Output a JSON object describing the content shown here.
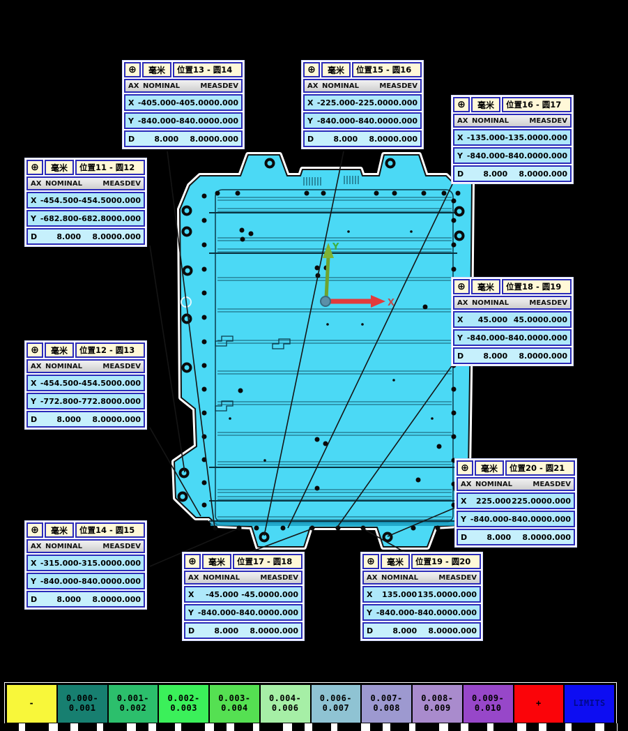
{
  "report": {
    "unit_label": "毫米",
    "feature_symbol": "⊕",
    "column_headers": [
      "AX",
      "NOMINAL",
      "MEAS",
      "DEV"
    ],
    "tables": [
      {
        "id": "pos13-circle14",
        "title": "位置13 - 圆14",
        "rows": [
          {
            "ax": "X",
            "nominal": "-405.000",
            "meas": "-405.000",
            "dev": "0.000"
          },
          {
            "ax": "Y",
            "nominal": "-840.000",
            "meas": "-840.000",
            "dev": "0.000"
          },
          {
            "ax": "D",
            "nominal": "8.000",
            "meas": "8.000",
            "dev": "0.000"
          }
        ]
      },
      {
        "id": "pos15-circle16",
        "title": "位置15 - 圆16",
        "rows": [
          {
            "ax": "X",
            "nominal": "-225.000",
            "meas": "-225.000",
            "dev": "0.000"
          },
          {
            "ax": "Y",
            "nominal": "-840.000",
            "meas": "-840.000",
            "dev": "0.000"
          },
          {
            "ax": "D",
            "nominal": "8.000",
            "meas": "8.000",
            "dev": "0.000"
          }
        ]
      },
      {
        "id": "pos16-circle17",
        "title": "位置16 - 圆17",
        "rows": [
          {
            "ax": "X",
            "nominal": "-135.000",
            "meas": "-135.000",
            "dev": "0.000"
          },
          {
            "ax": "Y",
            "nominal": "-840.000",
            "meas": "-840.000",
            "dev": "0.000"
          },
          {
            "ax": "D",
            "nominal": "8.000",
            "meas": "8.000",
            "dev": "0.000"
          }
        ]
      },
      {
        "id": "pos11-circle12",
        "title": "位置11 - 圆12",
        "rows": [
          {
            "ax": "X",
            "nominal": "-454.500",
            "meas": "-454.500",
            "dev": "0.000"
          },
          {
            "ax": "Y",
            "nominal": "-682.800",
            "meas": "-682.800",
            "dev": "0.000"
          },
          {
            "ax": "D",
            "nominal": "8.000",
            "meas": "8.000",
            "dev": "0.000"
          }
        ]
      },
      {
        "id": "pos18-circle19",
        "title": "位置18 - 圆19",
        "rows": [
          {
            "ax": "X",
            "nominal": "45.000",
            "meas": "45.000",
            "dev": "0.000"
          },
          {
            "ax": "Y",
            "nominal": "-840.000",
            "meas": "-840.000",
            "dev": "0.000"
          },
          {
            "ax": "D",
            "nominal": "8.000",
            "meas": "8.000",
            "dev": "0.000"
          }
        ]
      },
      {
        "id": "pos12-circle13",
        "title": "位置12 - 圆13",
        "rows": [
          {
            "ax": "X",
            "nominal": "-454.500",
            "meas": "-454.500",
            "dev": "0.000"
          },
          {
            "ax": "Y",
            "nominal": "-772.800",
            "meas": "-772.800",
            "dev": "0.000"
          },
          {
            "ax": "D",
            "nominal": "8.000",
            "meas": "8.000",
            "dev": "0.000"
          }
        ]
      },
      {
        "id": "pos20-circle21",
        "title": "位置20 - 圆21",
        "rows": [
          {
            "ax": "X",
            "nominal": "225.000",
            "meas": "225.000",
            "dev": "0.000"
          },
          {
            "ax": "Y",
            "nominal": "-840.000",
            "meas": "-840.000",
            "dev": "0.000"
          },
          {
            "ax": "D",
            "nominal": "8.000",
            "meas": "8.000",
            "dev": "0.000"
          }
        ]
      },
      {
        "id": "pos14-circle15",
        "title": "位置14 - 圆15",
        "rows": [
          {
            "ax": "X",
            "nominal": "-315.000",
            "meas": "-315.000",
            "dev": "0.000"
          },
          {
            "ax": "Y",
            "nominal": "-840.000",
            "meas": "-840.000",
            "dev": "0.000"
          },
          {
            "ax": "D",
            "nominal": "8.000",
            "meas": "8.000",
            "dev": "0.000"
          }
        ]
      },
      {
        "id": "pos17-circle18",
        "title": "位置17 - 圆18",
        "rows": [
          {
            "ax": "X",
            "nominal": "-45.000",
            "meas": "-45.000",
            "dev": "0.000"
          },
          {
            "ax": "Y",
            "nominal": "-840.000",
            "meas": "-840.000",
            "dev": "0.000"
          },
          {
            "ax": "D",
            "nominal": "8.000",
            "meas": "8.000",
            "dev": "0.000"
          }
        ]
      },
      {
        "id": "pos19-circle20",
        "title": "位置19 - 圆20",
        "rows": [
          {
            "ax": "X",
            "nominal": "135.000",
            "meas": "135.000",
            "dev": "0.000"
          },
          {
            "ax": "Y",
            "nominal": "-840.000",
            "meas": "-840.000",
            "dev": "0.000"
          },
          {
            "ax": "D",
            "nominal": "8.000",
            "meas": "8.000",
            "dev": "0.000"
          }
        ]
      }
    ]
  },
  "axes": {
    "x_label": "X",
    "y_label": "Y"
  },
  "legend": {
    "items": [
      {
        "line1": "-",
        "line2": "",
        "color": "#f8f73a",
        "text_color": "#000000"
      },
      {
        "line1": "0.000-",
        "line2": "0.001",
        "color": "#177f70",
        "text_color": "#000000"
      },
      {
        "line1": "0.001-",
        "line2": "0.002",
        "color": "#2cbf6c",
        "text_color": "#000000"
      },
      {
        "line1": "0.002-",
        "line2": "0.003",
        "color": "#3bf05a",
        "text_color": "#000000"
      },
      {
        "line1": "0.003-",
        "line2": "0.004",
        "color": "#55e052",
        "text_color": "#000000"
      },
      {
        "line1": "0.004-",
        "line2": "0.006",
        "color": "#a6efa6",
        "text_color": "#000000"
      },
      {
        "line1": "0.006-",
        "line2": "0.007",
        "color": "#8fc3d3",
        "text_color": "#000000"
      },
      {
        "line1": "0.007-",
        "line2": "0.008",
        "color": "#9d99d0",
        "text_color": "#000000"
      },
      {
        "line1": "0.008-",
        "line2": "0.009",
        "color": "#a98bcd",
        "text_color": "#000000"
      },
      {
        "line1": "0.009-",
        "line2": "0.010",
        "color": "#9747c9",
        "text_color": "#000000"
      },
      {
        "line1": "+",
        "line2": "",
        "color": "#fb0409",
        "text_color": "#000000"
      },
      {
        "line1": "LIMITS",
        "line2": "",
        "color": "#0d0df2",
        "text_color": "#000a8a"
      }
    ]
  },
  "colors": {
    "background": "#000000",
    "part_fill": "#4bd9f5",
    "part_edge": "#121212",
    "table_border": "#2a2ab8",
    "callout_header_bg": "#fff8d8",
    "callout_row_bg": "#aee8fa",
    "x_axis_color": "#d03b3b",
    "y_axis_color": "#6fa32e"
  }
}
